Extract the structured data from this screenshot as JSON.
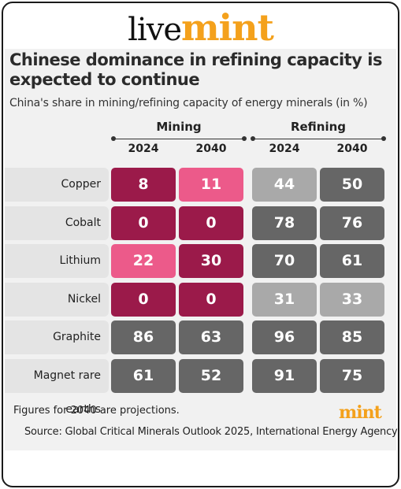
{
  "brand": {
    "live": "live",
    "mint": "mint",
    "mini": "mint"
  },
  "colors": {
    "dark_magenta": "#9b1a4a",
    "pink": "#ec5a8a",
    "dark_gray": "#666666",
    "light_gray": "#a9a9a9",
    "accent_orange": "#f4a11c"
  },
  "chart_data": {
    "type": "table",
    "title": "Chinese dominance in refining capacity is expected to continue",
    "subtitle": "China's share in mining/refining capacity of energy minerals (in %)",
    "groups": [
      {
        "name": "Mining",
        "years": [
          "2024",
          "2040"
        ]
      },
      {
        "name": "Refining",
        "years": [
          "2024",
          "2040"
        ]
      }
    ],
    "rows": [
      {
        "mineral": "Copper",
        "values": [
          8,
          11,
          44,
          50
        ],
        "shades": [
          "dark_magenta",
          "pink",
          "light_gray",
          "dark_gray"
        ]
      },
      {
        "mineral": "Cobalt",
        "values": [
          0,
          0,
          78,
          76
        ],
        "shades": [
          "dark_magenta",
          "dark_magenta",
          "dark_gray",
          "dark_gray"
        ]
      },
      {
        "mineral": "Lithium",
        "values": [
          22,
          30,
          70,
          61
        ],
        "shades": [
          "pink",
          "dark_magenta",
          "dark_gray",
          "dark_gray"
        ]
      },
      {
        "mineral": "Nickel",
        "values": [
          0,
          0,
          31,
          33
        ],
        "shades": [
          "dark_magenta",
          "dark_magenta",
          "light_gray",
          "light_gray"
        ]
      },
      {
        "mineral": "Graphite",
        "values": [
          86,
          63,
          96,
          85
        ],
        "shades": [
          "dark_gray",
          "dark_gray",
          "dark_gray",
          "dark_gray"
        ]
      },
      {
        "mineral": "Magnet rare earths",
        "values": [
          61,
          52,
          91,
          75
        ],
        "shades": [
          "dark_gray",
          "dark_gray",
          "dark_gray",
          "dark_gray"
        ]
      }
    ]
  },
  "footnote": "Figures for 2040 are projections.",
  "source": "Source: Global Critical Minerals Outlook 2025, International Energy Agency"
}
